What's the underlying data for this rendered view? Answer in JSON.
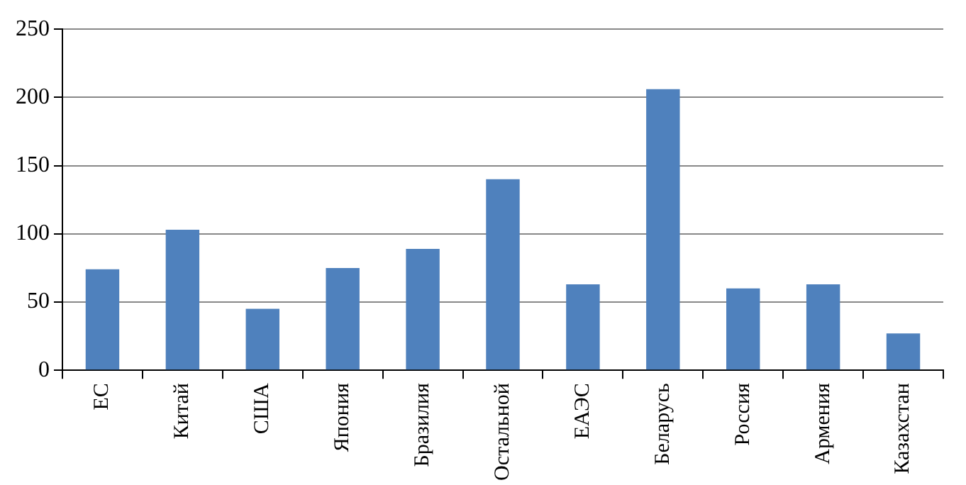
{
  "chart_data": {
    "type": "bar",
    "categories": [
      "ЕС",
      "Китай",
      "США",
      "Япония",
      "Бразилия",
      "Остальной",
      "ЕАЭС",
      "Беларусь",
      "Россия",
      "Армения",
      "Казахстан"
    ],
    "values": [
      74,
      103,
      45,
      75,
      89,
      140,
      63,
      206,
      60,
      63,
      27
    ],
    "color": "#4f81bd",
    "ylim": [
      0,
      250
    ],
    "yticks": [
      0,
      50,
      100,
      150,
      200,
      250
    ],
    "grid": "y",
    "legend": false
  }
}
